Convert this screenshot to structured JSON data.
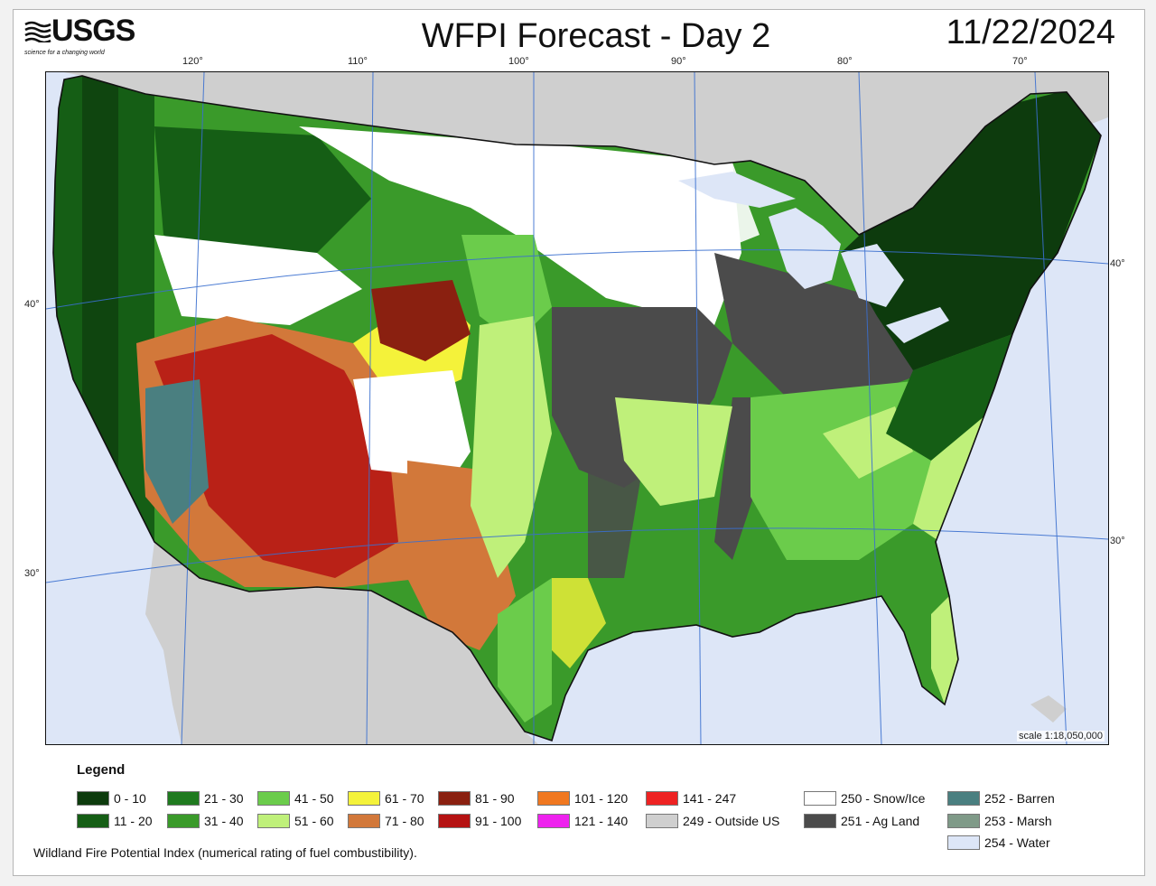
{
  "header": {
    "logo_text": "USGS",
    "logo_tagline": "science for a changing world",
    "title": "WFPI Forecast - Day 2",
    "date": "11/22/2024"
  },
  "map": {
    "top_longitude_labels": [
      "120°",
      "110°",
      "100°",
      "90°",
      "80°",
      "70°"
    ],
    "left_latitude_labels": [
      "40°",
      "30°"
    ],
    "right_latitude_labels": [
      "40°",
      "30°"
    ],
    "scale": "scale 1:18,050,000"
  },
  "legend": {
    "title": "Legend",
    "items": [
      {
        "label": "0 - 10",
        "color": "#0d3b0d"
      },
      {
        "label": "11 - 20",
        "color": "#155e15"
      },
      {
        "label": "21 - 30",
        "color": "#1f7a1f"
      },
      {
        "label": "31 - 40",
        "color": "#3a9a2a"
      },
      {
        "label": "41 - 50",
        "color": "#6bcc4b"
      },
      {
        "label": "51 - 60",
        "color": "#bff07a"
      },
      {
        "label": "61 - 70",
        "color": "#f4f23a"
      },
      {
        "label": "71 - 80",
        "color": "#d2783a"
      },
      {
        "label": "81 - 90",
        "color": "#8a2010"
      },
      {
        "label": "91 - 100",
        "color": "#b51212"
      },
      {
        "label": "101 - 120",
        "color": "#f07820"
      },
      {
        "label": "121 - 140",
        "color": "#ee22ee"
      },
      {
        "label": "141 - 247",
        "color": "#ee2222"
      },
      {
        "label": "249 - Outside US",
        "color": "#cfcfcf"
      },
      {
        "label": "250 - Snow/Ice",
        "color": "#ffffff"
      },
      {
        "label": "251 - Ag Land",
        "color": "#4b4b4b"
      },
      {
        "label": "252 - Barren",
        "color": "#4a7f80"
      },
      {
        "label": "253 - Marsh",
        "color": "#7f9a88"
      },
      {
        "label": "254 - Water",
        "color": "#dde6f7"
      }
    ]
  },
  "caption": "Wildland Fire Potential Index (numerical rating of fuel combustibility)."
}
